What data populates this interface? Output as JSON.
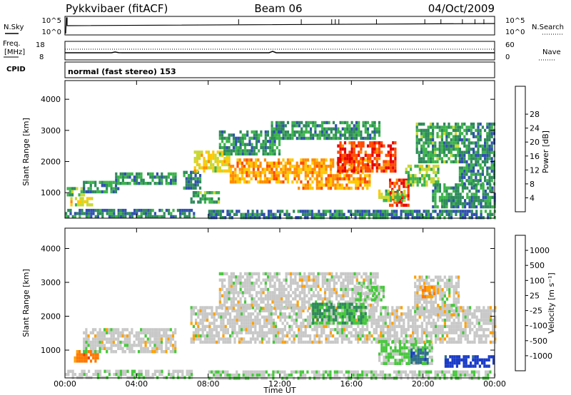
{
  "header": {
    "station": "Pykkvibaer (fitACF)",
    "beam": "Beam 06",
    "date": "04/Oct/2009"
  },
  "noise_panel": {
    "left_label": "N.Sky",
    "left_ticks": [
      "10^5",
      "10^0"
    ],
    "right_ticks": [
      "10^5",
      "10^0"
    ],
    "right_label": "N.Search"
  },
  "freq_panel": {
    "left_label_1": "Freq.",
    "left_label_2": "[MHz]",
    "left_ticks": [
      "18",
      "8"
    ],
    "right_ticks": [
      "60",
      "0"
    ],
    "right_label": "Nave"
  },
  "cpid_panel": {
    "label": "CPID",
    "mode": "normal (fast stereo) 153"
  },
  "chart_data": [
    {
      "type": "heatmap",
      "name": "power",
      "ylabel": "Slant Range [km]",
      "ylim": [
        180,
        4600
      ],
      "yticks": [
        "1000",
        "2000",
        "3000",
        "4000"
      ],
      "colorbar_label": "Power [dB]",
      "colorbar_ticks": [
        "4",
        "8",
        "12",
        "16",
        "20",
        "24",
        "28"
      ],
      "colorbar_colors": [
        "#1a1aff",
        "#3050b0",
        "#2e8a5a",
        "#3cb44b",
        "#c8d832",
        "#ffc800",
        "#ff8c00",
        "#ff4a00",
        "#e80000"
      ],
      "scale_range": [
        0,
        32
      ],
      "echo_regions": [
        {
          "t_start": 0.0,
          "t_end": 7.2,
          "range_low": 180,
          "range_high": 480,
          "level": 8
        },
        {
          "t_start": 0.1,
          "t_end": 1.0,
          "range_low": 950,
          "range_high": 1180,
          "level": 12
        },
        {
          "t_start": 0.3,
          "t_end": 1.5,
          "range_low": 620,
          "range_high": 860,
          "level": 18
        },
        {
          "t_start": 1.0,
          "t_end": 3.0,
          "range_low": 1000,
          "range_high": 1380,
          "level": 10
        },
        {
          "t_start": 2.8,
          "t_end": 6.2,
          "range_low": 1250,
          "range_high": 1650,
          "level": 9
        },
        {
          "t_start": 6.6,
          "t_end": 7.6,
          "range_low": 1150,
          "range_high": 1700,
          "level": 8
        },
        {
          "t_start": 7.0,
          "t_end": 8.6,
          "range_low": 650,
          "range_high": 1050,
          "level": 12
        },
        {
          "t_start": 7.2,
          "t_end": 9.2,
          "range_low": 1700,
          "range_high": 2350,
          "level": 18
        },
        {
          "t_start": 8.6,
          "t_end": 12.0,
          "range_low": 2200,
          "range_high": 3000,
          "level": 10
        },
        {
          "t_start": 9.2,
          "t_end": 13.0,
          "range_low": 1300,
          "range_high": 2100,
          "level": 22
        },
        {
          "t_start": 13.0,
          "t_end": 17.0,
          "range_low": 1100,
          "range_high": 2100,
          "level": 22
        },
        {
          "t_start": 15.2,
          "t_end": 18.4,
          "range_low": 1700,
          "range_high": 2650,
          "level": 27
        },
        {
          "t_start": 11.5,
          "t_end": 17.5,
          "range_low": 2700,
          "range_high": 3300,
          "level": 10
        },
        {
          "t_start": 18.1,
          "t_end": 19.2,
          "range_low": 600,
          "range_high": 1450,
          "level": 28
        },
        {
          "t_start": 17.5,
          "t_end": 19.0,
          "range_low": 700,
          "range_high": 1100,
          "level": 14
        },
        {
          "t_start": 19.0,
          "t_end": 20.8,
          "range_low": 1200,
          "range_high": 1900,
          "level": 14
        },
        {
          "t_start": 19.6,
          "t_end": 22.0,
          "range_low": 2000,
          "range_high": 3250,
          "level": 11
        },
        {
          "t_start": 20.5,
          "t_end": 24.0,
          "range_low": 500,
          "range_high": 1300,
          "level": 10
        },
        {
          "t_start": 22.0,
          "t_end": 24.0,
          "range_low": 1300,
          "range_high": 3250,
          "level": 9
        },
        {
          "t_start": 8.0,
          "t_end": 24.0,
          "range_low": 180,
          "range_high": 450,
          "level": 8
        }
      ]
    },
    {
      "type": "heatmap",
      "name": "velocity",
      "xlabel": "Time UT",
      "ylabel": "Slant Range [km]",
      "xlim": [
        0,
        24
      ],
      "xticks": [
        "00:00",
        "04:00",
        "08:00",
        "12:00",
        "16:00",
        "20:00",
        "00:00"
      ],
      "ylim": [
        180,
        4600
      ],
      "yticks": [
        "1000",
        "2000",
        "3000",
        "4000"
      ],
      "colorbar_label": "Velocity [m s⁻¹]",
      "colorbar_ticks": [
        "1000",
        "500",
        "100",
        "25",
        "-25",
        "-100",
        "-500",
        "-1000"
      ],
      "colorbar_colors": [
        "#1a3cc8",
        "#2e6e8c",
        "#2e8a5a",
        "#46c83c",
        "#c8c8c8",
        "#ffa000",
        "#ff7800",
        "#f04000",
        "#e80000"
      ],
      "scale_range": [
        -1000,
        1000
      ],
      "echo_regions": [
        {
          "t_start": 0.0,
          "t_end": 7.2,
          "range_low": 180,
          "range_high": 420,
          "level": 50
        },
        {
          "t_start": 0.5,
          "t_end": 1.8,
          "range_low": 700,
          "range_high": 1000,
          "level": -450
        },
        {
          "t_start": 1.0,
          "t_end": 6.2,
          "range_low": 1000,
          "range_high": 1650,
          "level": 0
        },
        {
          "t_start": 7.0,
          "t_end": 24.0,
          "range_low": 1200,
          "range_high": 2300,
          "level": 0
        },
        {
          "t_start": 8.6,
          "t_end": 17.5,
          "range_low": 2200,
          "range_high": 3300,
          "level": 0
        },
        {
          "t_start": 13.8,
          "t_end": 16.8,
          "range_low": 1800,
          "range_high": 2400,
          "level": 350
        },
        {
          "t_start": 16.2,
          "t_end": 17.8,
          "range_low": 2500,
          "range_high": 2900,
          "level": 120
        },
        {
          "t_start": 17.5,
          "t_end": 20.5,
          "range_low": 600,
          "range_high": 1300,
          "level": 150
        },
        {
          "t_start": 19.3,
          "t_end": 20.2,
          "range_low": 600,
          "range_high": 1050,
          "level": 700
        },
        {
          "t_start": 21.2,
          "t_end": 24.0,
          "range_low": 550,
          "range_high": 850,
          "level": 900
        },
        {
          "t_start": 19.5,
          "t_end": 22.0,
          "range_low": 2000,
          "range_high": 3200,
          "level": 0
        },
        {
          "t_start": 19.8,
          "t_end": 20.6,
          "range_low": 2600,
          "range_high": 2900,
          "level": -300
        },
        {
          "t_start": 8.0,
          "t_end": 24.0,
          "range_low": 180,
          "range_high": 400,
          "level": 60
        }
      ]
    }
  ]
}
